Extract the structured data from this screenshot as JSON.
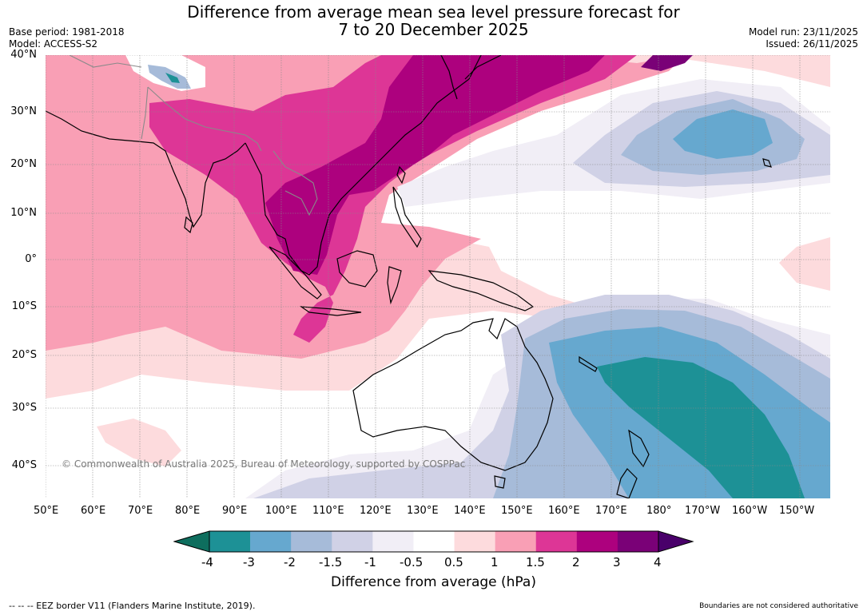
{
  "header": {
    "title_line1": "Difference from average mean sea level pressure forecast for",
    "title_line2": "7 to 20 December 2025",
    "base_period": "Base period: 1981-2018",
    "model": "Model: ACCESS-S2",
    "model_run": "Model run: 23/11/2025",
    "issued": "Issued: 26/11/2025"
  },
  "map": {
    "copyright": "© Commonwealth of Australia 2025, Bureau of Meteorology, supported by COSPPac",
    "lat_labels": [
      "40°N",
      "30°N",
      "20°N",
      "10°N",
      "0°",
      "10°S",
      "20°S",
      "30°S",
      "40°S"
    ],
    "lon_labels": [
      "50°E",
      "60°E",
      "70°E",
      "80°E",
      "90°E",
      "100°E",
      "110°E",
      "120°E",
      "130°E",
      "140°E",
      "150°E",
      "160°E",
      "170°E",
      "180°",
      "170°W",
      "160°W",
      "150°W"
    ]
  },
  "colorbar": {
    "title": "Difference from average (hPa)",
    "tick_labels": [
      "-4",
      "-3",
      "-2",
      "-1.5",
      "-1",
      "-0.5",
      "0.5",
      "1",
      "1.5",
      "2",
      "3",
      "4"
    ],
    "colors": [
      "#1d9196",
      "#66a8cf",
      "#a6bbd9",
      "#d0d1e6",
      "#f1eef6",
      "#ffffff",
      "#fddbdd",
      "#f99fb5",
      "#dd3696",
      "#ad017e",
      "#7a0177"
    ],
    "under_color": "#0e6e5e",
    "over_color": "#49006a"
  },
  "footer": {
    "eez_note": "--  --  -- EEZ border V11 (Flanders Marine Institute, 2019).",
    "disclaimer": "Boundaries are not considered authoritative"
  }
}
